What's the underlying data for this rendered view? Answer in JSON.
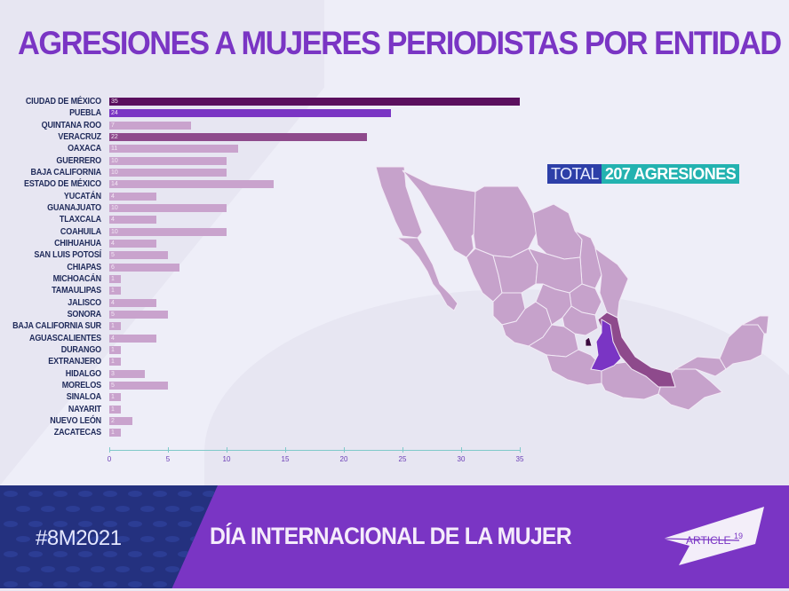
{
  "title": "AGRESIONES A MUJERES PERIODISTAS POR ENTIDAD",
  "total": {
    "label": "TOTAL",
    "value": "207 AGRESIONES"
  },
  "footer": {
    "hashtag": "#8M2021",
    "title": "DÍA INTERNACIONAL DE LA MUJER",
    "logo_text": "ARTICLE",
    "logo_sup": "19"
  },
  "colors": {
    "title": "#7a35c4",
    "bar_default": "#c9a3cd",
    "bar_cdmx": "#5a0f5e",
    "bar_puebla": "#7a35c4",
    "bar_veracruz": "#8e4a8c",
    "axis": "#7fc9c9",
    "total_label_bg": "#2d3fa8",
    "total_value_bg": "#23b2b0",
    "footer_bg": "#7a35c4",
    "footer_left_bg": "#24317f"
  },
  "chart_data": {
    "type": "bar",
    "orientation": "horizontal",
    "title": "AGRESIONES A MUJERES PERIODISTAS POR ENTIDAD",
    "xlabel": "",
    "ylabel": "",
    "xlim": [
      0,
      35
    ],
    "xticks": [
      0,
      5,
      10,
      15,
      20,
      25,
      30,
      35
    ],
    "grid": false,
    "categories": [
      "CIUDAD DE MÉXICO",
      "PUEBLA",
      "QUINTANA ROO",
      "VERACRUZ",
      "OAXACA",
      "GUERRERO",
      "BAJA CALIFORNIA",
      "ESTADO DE MÉXICO",
      "YUCATÁN",
      "GUANAJUATO",
      "TLAXCALA",
      "COAHUILA",
      "CHIHUAHUA",
      "SAN LUIS POTOSÍ",
      "CHIAPAS",
      "MICHOACÁN",
      "TAMAULIPAS",
      "JALISCO",
      "SONORA",
      "BAJA CALIFORNIA SUR",
      "AGUASCALIENTES",
      "DURANGO",
      "EXTRANJERO",
      "HIDALGO",
      "MORELOS",
      "SINALOA",
      "NAYARIT",
      "NUEVO LEÓN",
      "ZACATECAS"
    ],
    "values": [
      35,
      24,
      7,
      22,
      11,
      10,
      10,
      14,
      4,
      10,
      4,
      10,
      4,
      5,
      6,
      1,
      1,
      4,
      5,
      1,
      4,
      1,
      1,
      3,
      5,
      1,
      1,
      2,
      1
    ],
    "total": 207,
    "annotations": [
      "TOTAL 207 AGRESIONES"
    ]
  }
}
